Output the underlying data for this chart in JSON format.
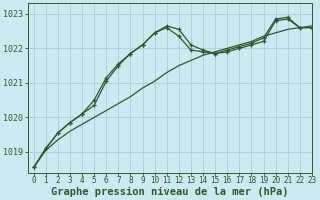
{
  "bg_color": "#cce8f0",
  "grid_color": "#aaccdd",
  "line_color": "#2d5a2d",
  "xlabel": "Graphe pression niveau de la mer (hPa)",
  "xlabel_fontsize": 7.5,
  "xlim": [
    -0.5,
    23
  ],
  "ylim": [
    1018.4,
    1023.3
  ],
  "yticks": [
    1019,
    1020,
    1021,
    1022,
    1023
  ],
  "xticks": [
    0,
    1,
    2,
    3,
    4,
    5,
    6,
    7,
    8,
    9,
    10,
    11,
    12,
    13,
    14,
    15,
    16,
    17,
    18,
    19,
    20,
    21,
    22,
    23
  ],
  "series_smooth": {
    "x": [
      0,
      1,
      2,
      3,
      4,
      5,
      6,
      7,
      8,
      9,
      10,
      11,
      12,
      13,
      14,
      15,
      16,
      17,
      18,
      19,
      20,
      21,
      22,
      23
    ],
    "y": [
      1018.55,
      1019.05,
      1019.35,
      1019.6,
      1019.8,
      1020.0,
      1020.2,
      1020.4,
      1020.6,
      1020.85,
      1021.05,
      1021.3,
      1021.5,
      1021.65,
      1021.8,
      1021.9,
      1022.0,
      1022.1,
      1022.2,
      1022.35,
      1022.45,
      1022.55,
      1022.6,
      1022.65
    ]
  },
  "series_marked1": {
    "x": [
      0,
      1,
      2,
      3,
      4,
      5,
      6,
      7,
      8,
      9,
      10,
      11,
      12,
      13,
      14,
      15,
      16,
      17,
      18,
      19,
      20,
      21,
      22,
      23
    ],
    "y": [
      1018.55,
      1019.1,
      1019.55,
      1019.85,
      1020.1,
      1020.35,
      1021.05,
      1021.5,
      1021.85,
      1022.1,
      1022.45,
      1022.6,
      1022.35,
      1021.95,
      1021.9,
      1021.85,
      1021.9,
      1022.0,
      1022.1,
      1022.2,
      1022.8,
      1022.85,
      1022.6,
      1022.6
    ]
  },
  "series_marked2": {
    "x": [
      0,
      1,
      2,
      3,
      4,
      5,
      6,
      7,
      8,
      9,
      10,
      11,
      12,
      13,
      14,
      15,
      16,
      17,
      18,
      19,
      20,
      21,
      22,
      23
    ],
    "y": [
      1018.55,
      1019.1,
      1019.55,
      1019.85,
      1020.1,
      1020.5,
      1021.15,
      1021.55,
      1021.85,
      1022.1,
      1022.45,
      1022.65,
      1022.55,
      1022.1,
      1021.95,
      1021.85,
      1021.95,
      1022.05,
      1022.15,
      1022.3,
      1022.85,
      1022.9,
      1022.6,
      1022.6
    ]
  }
}
